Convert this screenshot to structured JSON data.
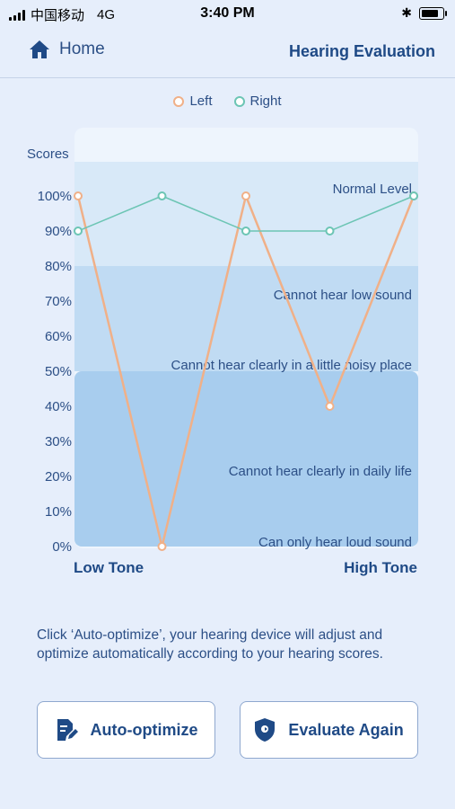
{
  "status_bar": {
    "carrier": "中国移动",
    "network": "4G",
    "time": "3:40 PM",
    "battery_level": 0.8
  },
  "nav": {
    "home_label": "Home",
    "title": "Hearing Evaluation"
  },
  "chart_data": {
    "type": "line",
    "legend": [
      "Left",
      "Right"
    ],
    "legend_placement": "top-center",
    "ylabel": "Scores",
    "ylim": [
      0,
      100
    ],
    "y_ticks": [
      "100%",
      "90%",
      "80%",
      "70%",
      "60%",
      "50%",
      "40%",
      "30%",
      "20%",
      "10%",
      "0%"
    ],
    "x_labels": {
      "low": "Low Tone",
      "high": "High Tone"
    },
    "series": [
      {
        "name": "Left",
        "color": "#f0b088",
        "values": [
          100,
          0,
          100,
          40,
          100
        ]
      },
      {
        "name": "Right",
        "color": "#6cc5b4",
        "values": [
          90,
          100,
          90,
          90,
          100
        ]
      }
    ],
    "bands": [
      {
        "label": "Normal Level",
        "from": 80,
        "to": 110,
        "color": "#d8e9f8"
      },
      {
        "label": "Cannot hear low sound",
        "from": 50,
        "to": 80,
        "color": "#c0dbf3"
      },
      {
        "label": "Cannot hear clearly in a little noisy place",
        "from": 50,
        "to": 50,
        "color": ""
      },
      {
        "label": "Cannot hear clearly in daily life",
        "from": 0,
        "to": 50,
        "color": "#a8cdee"
      },
      {
        "label": "Can only hear loud sound",
        "from": 0,
        "to": 0,
        "color": ""
      }
    ]
  },
  "description": "Click ‘Auto-optimize’, your hearing device will adjust and optimize automatically according to your hearing scores.",
  "buttons": {
    "auto_optimize": "Auto-optimize",
    "evaluate_again": "Evaluate Again"
  }
}
